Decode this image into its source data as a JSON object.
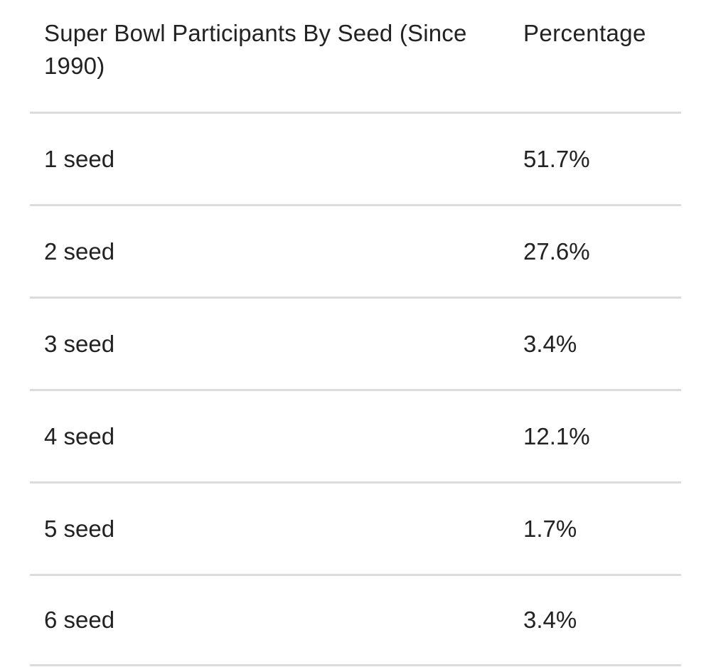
{
  "chart_data": {
    "type": "table",
    "columns": [
      "Super Bowl Participants By Seed (Since 1990)",
      "Percentage"
    ],
    "rows": [
      {
        "seed": "1 seed",
        "percentage": "51.7%",
        "value": 51.7
      },
      {
        "seed": "2 seed",
        "percentage": "27.6%",
        "value": 27.6
      },
      {
        "seed": "3 seed",
        "percentage": "3.4%",
        "value": 3.4
      },
      {
        "seed": "4 seed",
        "percentage": "12.1%",
        "value": 12.1
      },
      {
        "seed": "5 seed",
        "percentage": "1.7%",
        "value": 1.7
      },
      {
        "seed": "6 seed",
        "percentage": "3.4%",
        "value": 3.4
      }
    ]
  }
}
